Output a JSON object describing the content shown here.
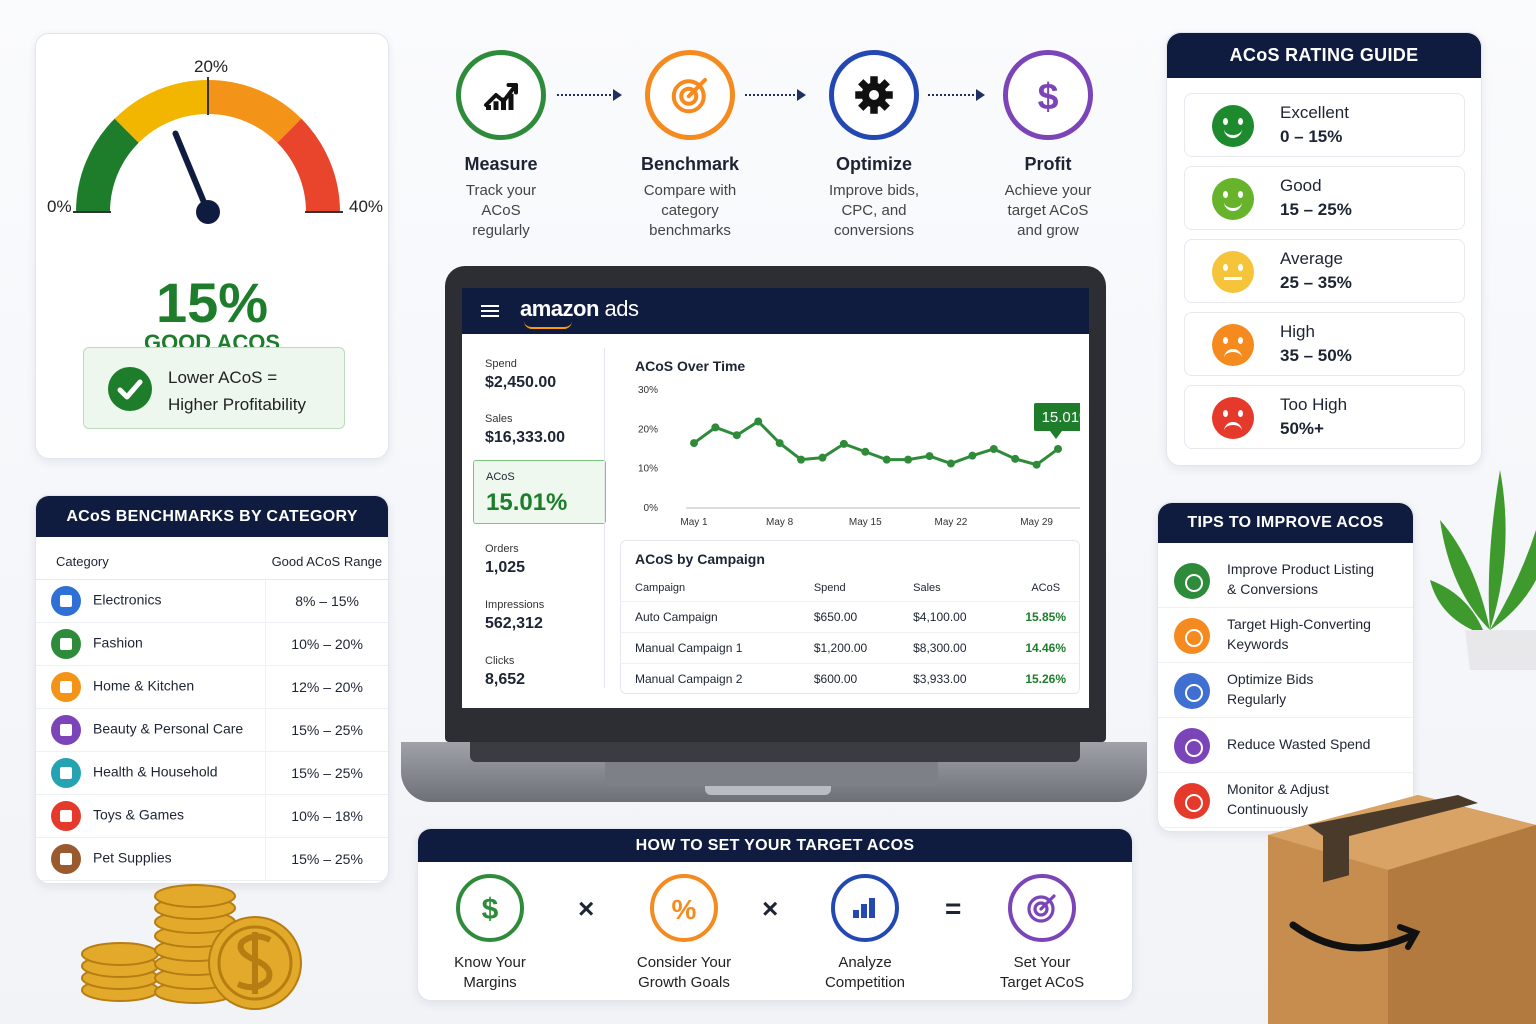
{
  "gauge": {
    "label_min": "0%",
    "label_mid": "20%",
    "label_max": "40%",
    "value": "15%",
    "value_caption": "GOOD ACOS",
    "needle_fraction": 0.375,
    "note_line1": "Lower ACoS =",
    "note_line2": "Higher Profitability",
    "colors": [
      "#1e7d2b",
      "#f2b600",
      "#f39418",
      "#e8452c"
    ]
  },
  "benchmarks": {
    "title": "ACoS BENCHMARKS BY CATEGORY",
    "col_category": "Category",
    "col_range": "Good ACoS Range",
    "rows": [
      {
        "category": "Electronics",
        "range": "8% – 15%",
        "icon": "phone-icon",
        "color": "#2f6fd6"
      },
      {
        "category": "Fashion",
        "range": "10% – 20%",
        "icon": "shirt-icon",
        "color": "#2e8b3a"
      },
      {
        "category": "Home & Kitchen",
        "range": "12% – 20%",
        "icon": "house-icon",
        "color": "#f39418"
      },
      {
        "category": "Beauty & Personal Care",
        "range": "15% – 25%",
        "icon": "bottle-icon",
        "color": "#7b44b8"
      },
      {
        "category": "Health & Household",
        "range": "15% – 25%",
        "icon": "dumbbell-icon",
        "color": "#25a3b3"
      },
      {
        "category": "Toys & Games",
        "range": "10% – 18%",
        "icon": "cart-icon",
        "color": "#e53a2b"
      },
      {
        "category": "Pet Supplies",
        "range": "15% – 25%",
        "icon": "paw-icon",
        "color": "#9a5a2e"
      }
    ]
  },
  "steps": [
    {
      "title": "Measure",
      "line1": "Track your",
      "line2": "ACoS",
      "line3": "regularly",
      "icon": "chart-up-icon",
      "color": "#2e8b3a"
    },
    {
      "title": "Benchmark",
      "line1": "Compare with",
      "line2": "category",
      "line3": "benchmarks",
      "icon": "target-icon",
      "color": "#f58a1f"
    },
    {
      "title": "Optimize",
      "line1": "Improve bids,",
      "line2": "CPC, and",
      "line3": "conversions",
      "icon": "gear-icon",
      "color": "#2448b3"
    },
    {
      "title": "Profit",
      "line1": "Achieve your",
      "line2": "target ACoS",
      "line3": "and grow",
      "icon": "dollar-icon",
      "color": "#7b44b8"
    }
  ],
  "dashboard": {
    "logo_main": "amazon",
    "logo_sub": " ads",
    "metrics": [
      {
        "label": "Spend",
        "value": "$2,450.00"
      },
      {
        "label": "Sales",
        "value": "$16,333.00"
      },
      {
        "label": "Orders",
        "value": "1,025"
      },
      {
        "label": "Impressions",
        "value": "562,312"
      },
      {
        "label": "Clicks",
        "value": "8,652"
      }
    ],
    "acos_label": "ACoS",
    "acos_value": "15.01%",
    "campaign_title": "ACoS by Campaign",
    "campaign_headers": [
      "Campaign",
      "Spend",
      "Sales",
      "ACoS"
    ],
    "campaigns": [
      {
        "name": "Auto Campaign",
        "spend": "$650.00",
        "sales": "$4,100.00",
        "acos": "15.85%"
      },
      {
        "name": "Manual Campaign 1",
        "spend": "$1,200.00",
        "sales": "$8,300.00",
        "acos": "14.46%"
      },
      {
        "name": "Manual Campaign 2",
        "spend": "$600.00",
        "sales": "$3,933.00",
        "acos": "15.26%"
      }
    ]
  },
  "chart_data": {
    "type": "line",
    "title": "ACoS Over Time",
    "x_tick_labels": [
      "May 1",
      "May 8",
      "May 15",
      "May 22",
      "May 29"
    ],
    "y_tick_labels": [
      "0%",
      "10%",
      "20%",
      "30%"
    ],
    "ylim": [
      0,
      30
    ],
    "x": [
      1,
      2,
      3,
      4,
      5,
      6,
      7,
      8,
      9,
      10,
      11,
      12,
      13,
      14,
      15,
      16,
      17,
      18
    ],
    "values": [
      16.5,
      20.5,
      18.5,
      22,
      16.5,
      12.3,
      12.8,
      16.3,
      14.3,
      12.3,
      12.3,
      13.2,
      11.3,
      13.3,
      15,
      12.5,
      11,
      15.01
    ],
    "callout": "15.01%",
    "line_color": "#2e8b3a",
    "grid": false
  },
  "target": {
    "title": "HOW TO SET YOUR TARGET ACOS",
    "items": [
      {
        "line1": "Know Your",
        "line2": "Margins",
        "icon": "dollar-icon",
        "color": "#2e8b3a"
      },
      {
        "line1": "Consider Your",
        "line2": "Growth Goals",
        "icon": "percent-icon",
        "color": "#f58a1f"
      },
      {
        "line1": "Analyze",
        "line2": "Competition",
        "icon": "bar-chart-icon",
        "color": "#2448b3"
      },
      {
        "line1": "Set Your",
        "line2": "Target ACoS",
        "icon": "target-icon",
        "color": "#7b44b8"
      }
    ],
    "op_times": "×",
    "op_equals": "="
  },
  "rating": {
    "title": "ACoS RATING GUIDE",
    "items": [
      {
        "name": "Excellent",
        "range": "0 – 15%",
        "color": "#1e8a2e",
        "mood": "happy"
      },
      {
        "name": "Good",
        "range": "15 – 25%",
        "color": "#67b32b",
        "mood": "happy"
      },
      {
        "name": "Average",
        "range": "25 – 35%",
        "color": "#f6c43a",
        "mood": "flat"
      },
      {
        "name": "High",
        "range": "35 – 50%",
        "color": "#f58a1f",
        "mood": "sad"
      },
      {
        "name": "Too High",
        "range": "50%+",
        "color": "#e53a2b",
        "mood": "sad"
      }
    ]
  },
  "tips": {
    "title": "TIPS TO IMPROVE ACOS",
    "items": [
      {
        "line1": "Improve Product Listing",
        "line2": "& Conversions",
        "icon": "search-icon",
        "color": "#2e8b3a"
      },
      {
        "line1": "Target High-Converting",
        "line2": "Keywords",
        "icon": "key-icon",
        "color": "#f58a1f"
      },
      {
        "line1": "Optimize Bids",
        "line2": "Regularly",
        "icon": "tag-icon",
        "color": "#3f6fd1"
      },
      {
        "line1": "Reduce Wasted Spend",
        "line2": "",
        "icon": "chart-up-icon",
        "color": "#7b44b8"
      },
      {
        "line1": "Monitor & Adjust",
        "line2": "Continuously",
        "icon": "gear-icon",
        "color": "#e53a2b"
      }
    ]
  }
}
